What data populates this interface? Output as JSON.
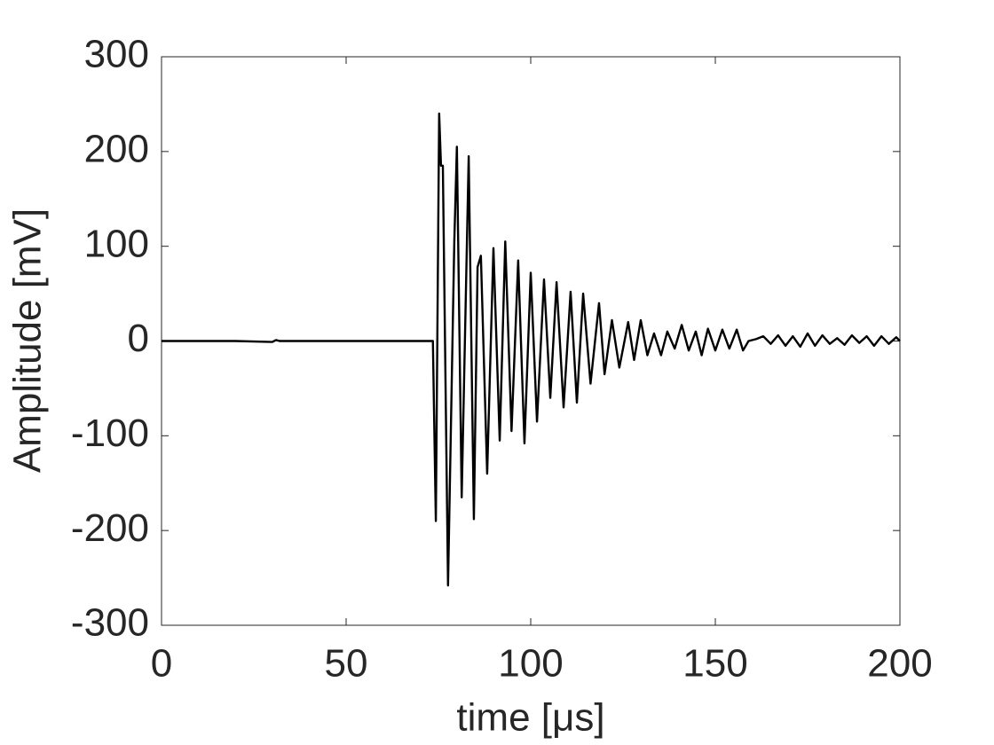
{
  "chart_data": {
    "type": "line",
    "x_label": "time [μs]",
    "y_label": "Amplitude [mV]",
    "x": [
      0,
      10,
      20,
      30,
      31,
      32,
      40,
      50,
      60,
      70,
      73.5,
      74.3,
      75.2,
      75.7,
      76.2,
      77.6,
      79.3,
      80,
      81.3,
      83.2,
      84.6,
      85.6,
      86.5,
      88.2,
      89.9,
      91.6,
      93.1,
      94.8,
      96.6,
      98.3,
      100,
      101.7,
      103.6,
      105.3,
      107,
      108.9,
      110.8,
      112.5,
      114.2,
      116.2,
      118.5,
      120,
      122,
      124,
      126.4,
      128,
      129.8,
      131.6,
      133.4,
      135.3,
      137,
      139,
      140.9,
      142.8,
      144.7,
      146.3,
      148,
      150,
      151.9,
      153.8,
      155.8,
      157.5,
      159,
      161,
      163,
      165,
      167,
      169,
      171,
      173,
      175,
      177,
      179,
      181,
      183,
      185,
      187,
      189,
      191,
      193,
      195,
      197,
      199,
      200
    ],
    "values": [
      0,
      0,
      0,
      -1,
      1,
      0,
      0,
      0,
      0,
      0,
      0,
      -190,
      240,
      185,
      185,
      -258,
      105,
      205,
      -165,
      195,
      -188,
      78,
      90,
      -140,
      98,
      -105,
      105,
      -95,
      85,
      -108,
      72,
      -85,
      65,
      -60,
      62,
      -70,
      52,
      -65,
      50,
      -45,
      40,
      -35,
      22,
      -28,
      20,
      -20,
      22,
      -15,
      8,
      -15,
      10,
      -8,
      17,
      -10,
      10,
      -15,
      13,
      -10,
      12,
      -8,
      12,
      -10,
      0,
      2,
      5,
      -3,
      6,
      -5,
      5,
      -6,
      8,
      -5,
      6,
      -3,
      3,
      -4,
      6,
      -2,
      5,
      -5,
      5,
      -3,
      4,
      0
    ],
    "color": "#000000",
    "xlim": [
      0,
      200
    ],
    "xticks": [
      0,
      50,
      100,
      150,
      200
    ],
    "ylim": [
      -300,
      300
    ],
    "yticks": [
      -300,
      -200,
      -100,
      0,
      100,
      200,
      300
    ]
  }
}
